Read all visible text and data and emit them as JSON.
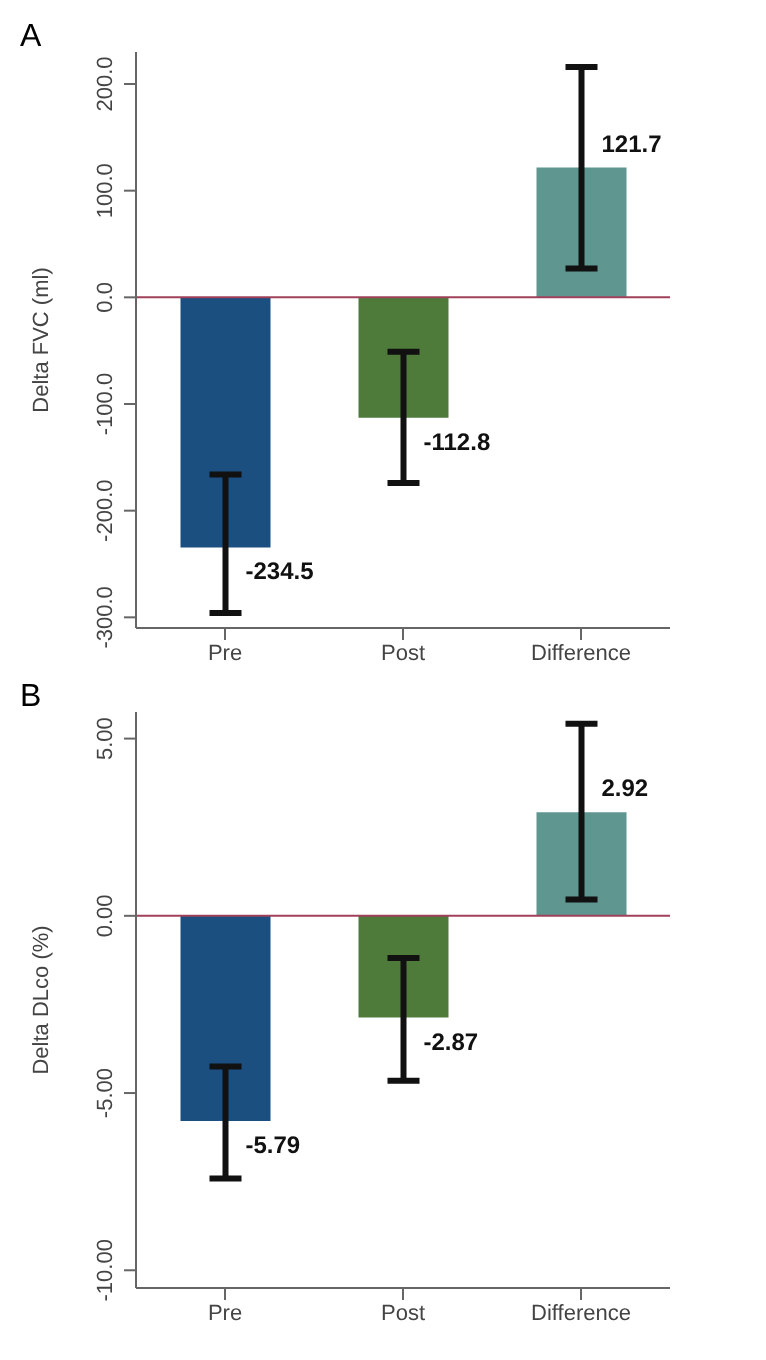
{
  "chart_data": [
    {
      "type": "bar",
      "title": "A",
      "ylabel": "Delta FVC (ml)",
      "categories": [
        "Pre",
        "Post",
        "Difference"
      ],
      "values": [
        -234.5,
        -112.8,
        121.7
      ],
      "colors": [
        "#1a4f80",
        "#4e7a3a",
        "#5f9690"
      ],
      "errors": [
        [
          -296,
          -166
        ],
        [
          -174,
          -51
        ],
        [
          27,
          216
        ]
      ],
      "data_labels": true,
      "ylim": [
        -310,
        230
      ],
      "yticks": [
        {
          "value": -300,
          "label": "-300.0"
        },
        {
          "value": -200,
          "label": "-200.0"
        },
        {
          "value": -100,
          "label": "-100.0"
        },
        {
          "value": 0,
          "label": "0.0"
        },
        {
          "value": 100,
          "label": "100.0"
        },
        {
          "value": 200,
          "label": "200.0"
        }
      ],
      "ref_lines": [
        {
          "axis": "y",
          "value": 0,
          "color": "#a0405a"
        }
      ],
      "grid": false,
      "legend": false
    },
    {
      "type": "bar",
      "title": "B",
      "ylabel": "Delta DLco (%)",
      "categories": [
        "Pre",
        "Post",
        "Difference"
      ],
      "values": [
        -5.79,
        -2.87,
        2.92
      ],
      "colors": [
        "#1a4f80",
        "#4e7a3a",
        "#5f9690"
      ],
      "errors": [
        [
          -7.41,
          -4.25
        ],
        [
          -4.65,
          -1.19
        ],
        [
          0.46,
          5.42
        ]
      ],
      "data_labels": true,
      "ylim": [
        -10.5,
        5.75
      ],
      "yticks": [
        {
          "value": -10,
          "label": "-10.00"
        },
        {
          "value": -5,
          "label": "-5.00"
        },
        {
          "value": 0,
          "label": "0.00"
        },
        {
          "value": 5,
          "label": "5.00"
        }
      ],
      "ref_lines": [
        {
          "axis": "y",
          "value": 0,
          "color": "#a0405a"
        }
      ],
      "grid": false,
      "legend": false
    }
  ]
}
